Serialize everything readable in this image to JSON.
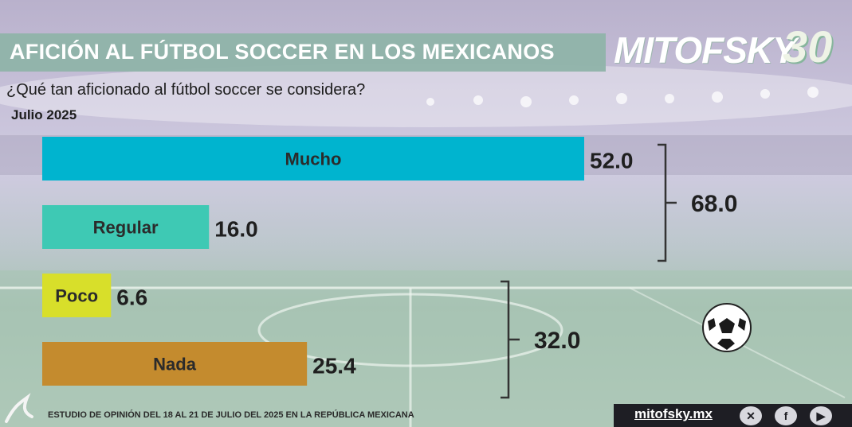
{
  "header": {
    "title": "AFICIÓN AL FÚTBOL SOCCER EN LOS MEXICANOS",
    "logo_text": "MITOFSKY",
    "logo_number": "30",
    "subtitle": "¿Qué tan aficionado al fútbol soccer se considera?",
    "date": "Julio 2025"
  },
  "chart_data": {
    "type": "bar",
    "orientation": "horizontal",
    "categories": [
      "Mucho",
      "Regular",
      "Poco",
      "Nada"
    ],
    "values": [
      52.0,
      16.0,
      6.6,
      25.4
    ],
    "value_labels": [
      "52.0",
      "16.0",
      "6.6",
      "25.4"
    ],
    "colors": [
      "#00b4cf",
      "#3ec9b4",
      "#d8df2a",
      "#c48b2e"
    ],
    "xlim": [
      0,
      52.0
    ],
    "groups": [
      {
        "members": [
          "Mucho",
          "Regular"
        ],
        "total": 68.0,
        "label": "68.0"
      },
      {
        "members": [
          "Poco",
          "Nada"
        ],
        "total": 32.0,
        "label": "32.0"
      }
    ],
    "grid": false,
    "legend": "none"
  },
  "footer": {
    "note": "ESTUDIO DE OPINIÓN DEL 18 AL 21 DE JULIO DEL 2025 EN LA REPÚBLICA MEXICANA",
    "url": "mitofsky.mx",
    "social_icons": [
      "x-icon",
      "facebook-icon",
      "youtube-icon"
    ]
  }
}
